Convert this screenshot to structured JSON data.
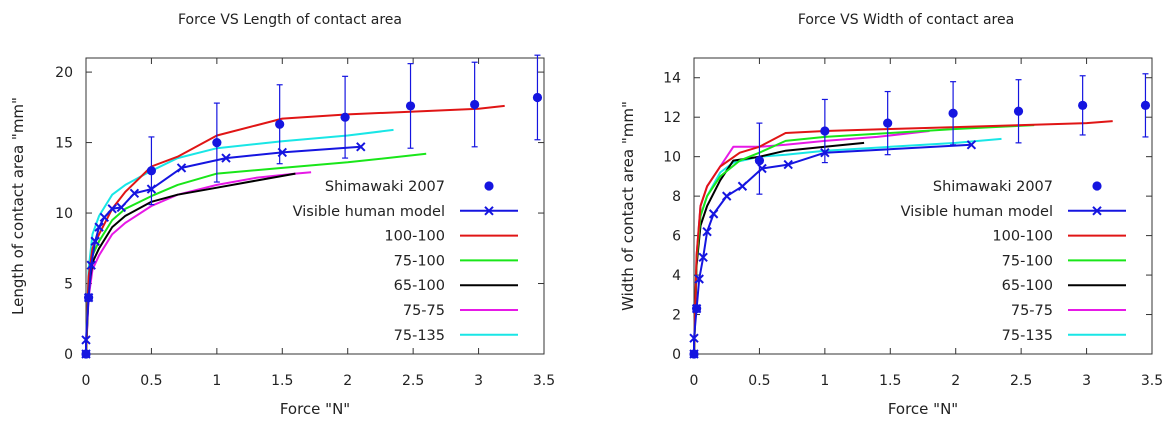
{
  "colors": {
    "Shimawaki 2007": "#1515e0",
    "Visible human model": "#1515e0",
    "100-100": "#e01515",
    "75-100": "#19e619",
    "65-100": "#000000",
    "75-75": "#e619e6",
    "75-135": "#19e6e6",
    "axes": "#333333",
    "text": "#222222"
  },
  "chart_data": [
    {
      "type": "line",
      "title": "Force VS Length of contact area",
      "xlabel": "Force \"N\"",
      "ylabel": "Length of contact area \"mm\"",
      "xlim": [
        0,
        3.5
      ],
      "ylim": [
        0,
        21
      ],
      "xticks": [
        0,
        0.5,
        1,
        1.5,
        2,
        2.5,
        3,
        3.5
      ],
      "xtick_labels": [
        "0",
        "0.5",
        "1",
        "1.5",
        "2",
        "2.5",
        "3",
        "3.5"
      ],
      "yticks": [
        0,
        5,
        10,
        15,
        20
      ],
      "ytick_labels": [
        "0",
        "5",
        "10",
        "15",
        "20"
      ],
      "grid": false,
      "legend_position": "center-right",
      "series": [
        {
          "name": "Shimawaki 2007",
          "style": "points-errorbars",
          "x": [
            0.0,
            0.02,
            0.5,
            1.0,
            1.48,
            1.98,
            2.48,
            2.97,
            3.45
          ],
          "y": [
            0.0,
            4.0,
            13.0,
            15.0,
            16.3,
            16.8,
            17.6,
            17.7,
            18.2
          ],
          "err_low": [
            0.0,
            0.0,
            2.4,
            2.8,
            2.8,
            2.9,
            3.0,
            3.0,
            3.0
          ],
          "err_high": [
            0.0,
            0.0,
            2.4,
            2.8,
            2.8,
            2.9,
            3.0,
            3.0,
            3.0
          ]
        },
        {
          "name": "Visible human model",
          "style": "line-cross",
          "x": [
            0.0,
            0.0,
            0.02,
            0.04,
            0.07,
            0.1,
            0.14,
            0.2,
            0.27,
            0.37,
            0.5,
            0.73,
            1.07,
            1.5,
            2.1
          ],
          "y": [
            0.0,
            1.0,
            4.0,
            6.3,
            8.0,
            9.0,
            9.7,
            10.3,
            10.4,
            11.4,
            11.7,
            13.2,
            13.9,
            14.3,
            14.7
          ]
        },
        {
          "name": "100-100",
          "style": "line",
          "x": [
            0.0,
            0.02,
            0.05,
            0.1,
            0.2,
            0.3,
            0.5,
            0.7,
            1.0,
            1.5,
            2.0,
            2.5,
            3.0,
            3.2
          ],
          "y": [
            0.0,
            5.5,
            7.5,
            8.5,
            10.3,
            11.5,
            13.3,
            14.0,
            15.5,
            16.7,
            17.0,
            17.2,
            17.4,
            17.6
          ]
        },
        {
          "name": "75-100",
          "style": "line",
          "x": [
            0.0,
            0.02,
            0.05,
            0.1,
            0.2,
            0.3,
            0.5,
            0.7,
            1.0,
            1.5,
            2.0,
            2.6
          ],
          "y": [
            0.0,
            5.0,
            7.0,
            8.0,
            9.5,
            10.3,
            11.2,
            12.0,
            12.8,
            13.2,
            13.6,
            14.2
          ]
        },
        {
          "name": "65-100",
          "style": "line",
          "x": [
            0.0,
            0.02,
            0.05,
            0.1,
            0.2,
            0.3,
            0.5,
            0.7,
            1.0,
            1.3,
            1.6
          ],
          "y": [
            0.0,
            4.5,
            6.5,
            7.5,
            9.0,
            9.8,
            10.8,
            11.3,
            11.8,
            12.3,
            12.8
          ]
        },
        {
          "name": "75-75",
          "style": "line",
          "x": [
            0.0,
            0.02,
            0.05,
            0.1,
            0.2,
            0.3,
            0.5,
            0.7,
            1.0,
            1.3,
            1.6,
            1.72
          ],
          "y": [
            0.0,
            4.0,
            6.0,
            7.0,
            8.5,
            9.3,
            10.5,
            11.3,
            12.0,
            12.5,
            12.8,
            12.9
          ]
        },
        {
          "name": "75-135",
          "style": "line",
          "x": [
            0.0,
            0.02,
            0.05,
            0.1,
            0.2,
            0.3,
            0.5,
            0.7,
            1.0,
            1.5,
            2.0,
            2.35
          ],
          "y": [
            0.0,
            6.0,
            8.5,
            9.8,
            11.3,
            12.0,
            13.0,
            13.9,
            14.6,
            15.1,
            15.5,
            15.9
          ]
        }
      ]
    },
    {
      "type": "line",
      "title": "Force VS Width of contact area",
      "xlabel": "Force \"N\"",
      "ylabel": "Width of contact area \"mm\"",
      "xlim": [
        0,
        3.5
      ],
      "ylim": [
        0,
        15
      ],
      "xticks": [
        0,
        0.5,
        1,
        1.5,
        2,
        2.5,
        3,
        3.5
      ],
      "xtick_labels": [
        "0",
        "0.5",
        "1",
        "1.5",
        "2",
        "2.5",
        "3",
        "3.5"
      ],
      "yticks": [
        0,
        2,
        4,
        6,
        8,
        10,
        12,
        14
      ],
      "ytick_labels": [
        "0",
        "2",
        "4",
        "6",
        "8",
        "10",
        "12",
        "14"
      ],
      "grid": false,
      "legend_position": "center-right",
      "series": [
        {
          "name": "Shimawaki 2007",
          "style": "points-errorbars",
          "x": [
            0.0,
            0.02,
            0.5,
            1.0,
            1.48,
            1.98,
            2.48,
            2.97,
            3.45
          ],
          "y": [
            0.0,
            2.3,
            9.8,
            11.3,
            11.7,
            12.2,
            12.3,
            12.6,
            12.6
          ],
          "err_low": [
            0.0,
            0.0,
            1.7,
            1.6,
            1.6,
            1.6,
            1.6,
            1.5,
            1.6
          ],
          "err_high": [
            0.0,
            0.0,
            1.9,
            1.6,
            1.6,
            1.6,
            1.6,
            1.5,
            1.6
          ]
        },
        {
          "name": "Visible human model",
          "style": "line-cross",
          "x": [
            0.0,
            0.0,
            0.02,
            0.04,
            0.07,
            0.1,
            0.15,
            0.25,
            0.37,
            0.52,
            0.72,
            1.0,
            2.12
          ],
          "y": [
            0.0,
            0.8,
            2.3,
            3.8,
            4.9,
            6.2,
            7.1,
            8.0,
            8.5,
            9.4,
            9.6,
            10.2,
            10.6
          ]
        },
        {
          "name": "100-100",
          "style": "line",
          "x": [
            0.0,
            0.02,
            0.05,
            0.1,
            0.2,
            0.35,
            0.5,
            0.7,
            1.0,
            1.5,
            2.0,
            2.5,
            3.0,
            3.2
          ],
          "y": [
            0.0,
            5.0,
            7.5,
            8.5,
            9.5,
            10.2,
            10.5,
            11.2,
            11.3,
            11.4,
            11.5,
            11.6,
            11.7,
            11.8
          ]
        },
        {
          "name": "75-100",
          "style": "line",
          "x": [
            0.0,
            0.02,
            0.05,
            0.1,
            0.2,
            0.35,
            0.5,
            0.7,
            1.0,
            1.5,
            2.0,
            2.6
          ],
          "y": [
            0.0,
            4.8,
            7.0,
            8.0,
            9.0,
            9.8,
            10.2,
            10.8,
            11.0,
            11.2,
            11.4,
            11.6
          ]
        },
        {
          "name": "65-100",
          "style": "line",
          "x": [
            0.0,
            0.02,
            0.05,
            0.1,
            0.2,
            0.3,
            0.5,
            0.7,
            1.0,
            1.3
          ],
          "y": [
            0.0,
            4.5,
            6.5,
            7.5,
            8.8,
            9.8,
            10.0,
            10.3,
            10.5,
            10.7
          ]
        },
        {
          "name": "75-75",
          "style": "line",
          "x": [
            0.0,
            0.02,
            0.05,
            0.1,
            0.2,
            0.3,
            0.5,
            0.7,
            1.0,
            1.4,
            1.8
          ],
          "y": [
            0.0,
            5.0,
            7.5,
            8.5,
            9.5,
            10.5,
            10.5,
            10.6,
            10.8,
            11.0,
            11.3
          ]
        },
        {
          "name": "75-135",
          "style": "line",
          "x": [
            0.0,
            0.02,
            0.05,
            0.1,
            0.2,
            0.3,
            0.5,
            0.7,
            1.0,
            1.5,
            2.0,
            2.35
          ],
          "y": [
            0.0,
            4.5,
            7.0,
            8.0,
            9.2,
            9.7,
            10.0,
            10.1,
            10.3,
            10.5,
            10.7,
            10.9
          ]
        }
      ]
    }
  ]
}
